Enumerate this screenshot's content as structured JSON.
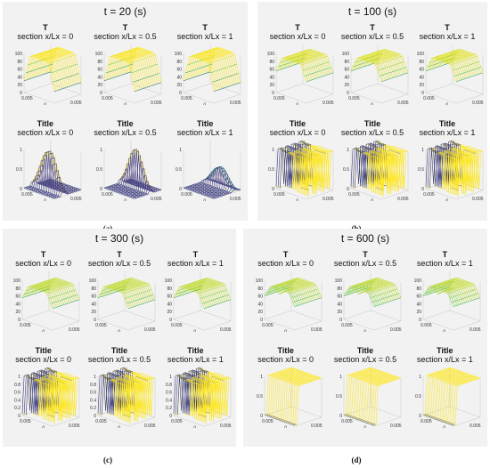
{
  "chart_data": [
    {
      "type": "surface",
      "title": "t = 20 (s)",
      "caption": "(a)",
      "subplots": [
        {
          "title": "T",
          "subtitle": "section x/Lx = 0",
          "zlim": [
            0,
            100
          ],
          "zticks": [
            "0",
            "20",
            "40",
            "60",
            "80",
            "100"
          ],
          "x_ticks": [
            "0.005",
            "0"
          ],
          "y_ticks": [
            "0",
            "0.005",
            "0.01"
          ],
          "pattern": "plateau",
          "base": 0.3,
          "peak": 1.0,
          "gap": false
        },
        {
          "title": "T",
          "subtitle": "section x/Lx = 0.5",
          "zlim": [
            0,
            100
          ],
          "zticks": [
            "0",
            "20",
            "40",
            "60",
            "80",
            "100"
          ],
          "x_ticks": [
            "0.005",
            "0"
          ],
          "y_ticks": [
            "0",
            "0.005",
            "0.01"
          ],
          "pattern": "plateau",
          "base": 0.3,
          "peak": 1.0,
          "gap": false
        },
        {
          "title": "T",
          "subtitle": "section x/Lx = 1",
          "zlim": [
            0,
            100
          ],
          "zticks": [
            "0",
            "20",
            "40",
            "60",
            "80",
            "100"
          ],
          "x_ticks": [
            "0.005",
            "0"
          ],
          "y_ticks": [
            "0",
            "0.005",
            "0.01"
          ],
          "pattern": "plateau",
          "base": 0.3,
          "peak": 1.0,
          "gap": false
        },
        {
          "title": "Title",
          "subtitle": "section x/Lx = 0",
          "zlim": [
            0,
            1
          ],
          "zticks": [
            "0",
            "0.5",
            "1"
          ],
          "x_ticks": [
            "0.005",
            "0"
          ],
          "y_ticks": [
            "0",
            "0.005",
            "0.01"
          ],
          "pattern": "front",
          "base": 0,
          "peak": 1.0,
          "front": 0.25
        },
        {
          "title": "Title",
          "subtitle": "section x/Lx = 0.5",
          "zlim": [
            0,
            1
          ],
          "zticks": [
            "0",
            "0.5",
            "1"
          ],
          "x_ticks": [
            "0.005",
            "0"
          ],
          "y_ticks": [
            "0",
            "0.005",
            "0.01"
          ],
          "pattern": "front",
          "base": 0,
          "peak": 1.0,
          "front": 0.5
        },
        {
          "title": "Title",
          "subtitle": "section x/Lx = 1",
          "zlim": [
            0,
            1
          ],
          "zticks": [
            "0",
            "0.5",
            "1"
          ],
          "x_ticks": [
            "0.005",
            "0"
          ],
          "y_ticks": [
            "0",
            "0.005",
            "0.01"
          ],
          "pattern": "front",
          "base": 0,
          "peak": 0.5,
          "front": 0.7
        }
      ]
    },
    {
      "type": "surface",
      "title": "t = 100 (s)",
      "caption": "(b)",
      "subplots": [
        {
          "title": "T",
          "subtitle": "section x/Lx = 0",
          "zlim": [
            0,
            100
          ],
          "zticks": [
            "0",
            "20",
            "40",
            "60",
            "80",
            "100"
          ],
          "x_ticks": [
            "0.005",
            "0"
          ],
          "y_ticks": [
            "0",
            "0.005",
            "0.01"
          ],
          "pattern": "plateau",
          "base": 0.55,
          "peak": 0.95,
          "gap": false
        },
        {
          "title": "T",
          "subtitle": "section x/Lx = 0.5",
          "zlim": [
            0,
            100
          ],
          "zticks": [
            "0",
            "20",
            "40",
            "60",
            "80",
            "100"
          ],
          "x_ticks": [
            "0.005",
            "0"
          ],
          "y_ticks": [
            "0",
            "0.005",
            "0.01"
          ],
          "pattern": "plateau",
          "base": 0.55,
          "peak": 0.95,
          "gap": false
        },
        {
          "title": "T",
          "subtitle": "section x/Lx = 1",
          "zlim": [
            0,
            100
          ],
          "zticks": [
            "0",
            "20",
            "40",
            "60",
            "80",
            "100"
          ],
          "x_ticks": [
            "0.005",
            "0"
          ],
          "y_ticks": [
            "0",
            "0.005",
            "0.01"
          ],
          "pattern": "plateau",
          "base": 0.55,
          "peak": 0.95,
          "gap": false
        },
        {
          "title": "Title",
          "subtitle": "section x/Lx = 0",
          "zlim": [
            0,
            1
          ],
          "zticks": [
            "0",
            "0.5",
            "1"
          ],
          "x_ticks": [
            "0.005",
            "0"
          ],
          "y_ticks": [
            "0",
            "0.005",
            "0.01"
          ],
          "pattern": "dense",
          "base": 0,
          "peak": 1.0
        },
        {
          "title": "Title",
          "subtitle": "section x/Lx = 0.5",
          "zlim": [
            0,
            1
          ],
          "zticks": [
            "0",
            "0.5",
            "1"
          ],
          "x_ticks": [
            "0.005",
            "0"
          ],
          "y_ticks": [
            "0",
            "0.005",
            "0.01"
          ],
          "pattern": "dense",
          "base": 0,
          "peak": 1.0
        },
        {
          "title": "Title",
          "subtitle": "section x/Lx = 1",
          "zlim": [
            0,
            1
          ],
          "zticks": [
            "0",
            "0.5",
            "1"
          ],
          "x_ticks": [
            "0.005",
            "0"
          ],
          "y_ticks": [
            "0",
            "0.005",
            "0.01"
          ],
          "pattern": "dense",
          "base": 0,
          "peak": 1.0
        }
      ]
    },
    {
      "type": "surface",
      "title": "t = 300 (s)",
      "caption": "(c)",
      "subplots": [
        {
          "title": "T",
          "subtitle": "section x/Lx = 0",
          "zlim": [
            0,
            100
          ],
          "zticks": [
            "0",
            "20",
            "40",
            "60",
            "80",
            "100"
          ],
          "x_ticks": [
            "0.005",
            "0"
          ],
          "y_ticks": [
            "0",
            "0.005",
            "0.01"
          ],
          "pattern": "plateau",
          "base": 0.55,
          "peak": 0.9,
          "gap": false
        },
        {
          "title": "T",
          "subtitle": "section x/Lx = 0.5",
          "zlim": [
            0,
            100
          ],
          "zticks": [
            "0",
            "20",
            "40",
            "60",
            "80",
            "100"
          ],
          "x_ticks": [
            "0.005",
            "0"
          ],
          "y_ticks": [
            "0",
            "0.005",
            "0.01"
          ],
          "pattern": "plateau",
          "base": 0.55,
          "peak": 0.9,
          "gap": false
        },
        {
          "title": "T",
          "subtitle": "section x/Lx = 1",
          "zlim": [
            0,
            100
          ],
          "zticks": [
            "0",
            "20",
            "40",
            "60",
            "80",
            "100"
          ],
          "x_ticks": [
            "0.005",
            "0"
          ],
          "y_ticks": [
            "0",
            "0.005",
            "0.01"
          ],
          "pattern": "plateau",
          "base": 0.55,
          "peak": 0.9,
          "gap": false
        },
        {
          "title": "Title",
          "subtitle": "section x/Lx = 0",
          "zlim": [
            0,
            1
          ],
          "zticks": [
            "0",
            "0.2",
            "0.4",
            "0.6",
            "0.8",
            "1"
          ],
          "x_ticks": [
            "0.005",
            "0"
          ],
          "y_ticks": [
            "0",
            "0.005",
            "0.01"
          ],
          "pattern": "dense",
          "base": 0,
          "peak": 1.0
        },
        {
          "title": "Title",
          "subtitle": "section x/Lx = 0.5",
          "zlim": [
            0,
            1
          ],
          "zticks": [
            "0",
            "0.2",
            "0.4",
            "0.6",
            "0.8",
            "1"
          ],
          "x_ticks": [
            "0.005",
            "0"
          ],
          "y_ticks": [
            "0",
            "0.005",
            "0.01"
          ],
          "pattern": "dense",
          "base": 0,
          "peak": 1.0
        },
        {
          "title": "Title",
          "subtitle": "section x/Lx = 1",
          "zlim": [
            0,
            1
          ],
          "zticks": [
            "0",
            "0.2",
            "0.4",
            "0.6",
            "0.8",
            "1"
          ],
          "x_ticks": [
            "0.005",
            "0"
          ],
          "y_ticks": [
            "0",
            "0.005",
            "0.01"
          ],
          "pattern": "dense",
          "base": 0,
          "peak": 1.0
        }
      ]
    },
    {
      "type": "surface",
      "title": "t = 600 (s)",
      "caption": "(d)",
      "subplots": [
        {
          "title": "T",
          "subtitle": "section x/Lx = 0",
          "zlim": [
            0,
            100
          ],
          "zticks": [
            "0",
            "20",
            "40",
            "60",
            "80",
            "100"
          ],
          "x_ticks": [
            "0.005",
            "0"
          ],
          "y_ticks": [
            "0",
            "0.005",
            "0.01"
          ],
          "pattern": "plateau",
          "base": 0.6,
          "peak": 0.9,
          "gap": true
        },
        {
          "title": "T",
          "subtitle": "section x/Lx = 0.5",
          "zlim": [
            0,
            100
          ],
          "zticks": [
            "0",
            "20",
            "40",
            "60",
            "80",
            "100"
          ],
          "x_ticks": [
            "0.005",
            "0"
          ],
          "y_ticks": [
            "0",
            "0.005",
            "0.01"
          ],
          "pattern": "plateau",
          "base": 0.6,
          "peak": 0.9,
          "gap": true
        },
        {
          "title": "T",
          "subtitle": "section x/Lx = 1",
          "zlim": [
            0,
            100
          ],
          "zticks": [
            "0",
            "20",
            "40",
            "60",
            "80",
            "100"
          ],
          "x_ticks": [
            "0.005",
            "0"
          ],
          "y_ticks": [
            "0",
            "0.005",
            "0.01"
          ],
          "pattern": "plateau",
          "base": 0.6,
          "peak": 0.9,
          "gap": true
        },
        {
          "title": "Title",
          "subtitle": "section x/Lx = 0",
          "zlim": [
            0,
            1
          ],
          "zticks": [
            "0",
            "0.5",
            "1"
          ],
          "x_ticks": [
            "0.005",
            "0"
          ],
          "y_ticks": [
            "0",
            "0.005",
            "0.01"
          ],
          "pattern": "box",
          "base": 0,
          "peak": 1.0
        },
        {
          "title": "Title",
          "subtitle": "section x/Lx = 0.5",
          "zlim": [
            0,
            1
          ],
          "zticks": [
            "0",
            "0.5",
            "1"
          ],
          "x_ticks": [
            "0.005",
            "0"
          ],
          "y_ticks": [
            "0",
            "0.005",
            "0.01"
          ],
          "pattern": "box",
          "base": 0,
          "peak": 1.0
        },
        {
          "title": "Title",
          "subtitle": "section x/Lx = 1",
          "zlim": [
            0,
            1
          ],
          "zticks": [
            "0",
            "0.5",
            "1"
          ],
          "x_ticks": [
            "0.005",
            "0"
          ],
          "y_ticks": [
            "0",
            "0.005",
            "0.01"
          ],
          "pattern": "box",
          "base": 0,
          "peak": 1.0
        }
      ]
    }
  ],
  "colors": {
    "panel_bg": "#f2f2f2",
    "colormap": [
      "#440154",
      "#3b528b",
      "#21918c",
      "#5ec962",
      "#fde725"
    ]
  }
}
